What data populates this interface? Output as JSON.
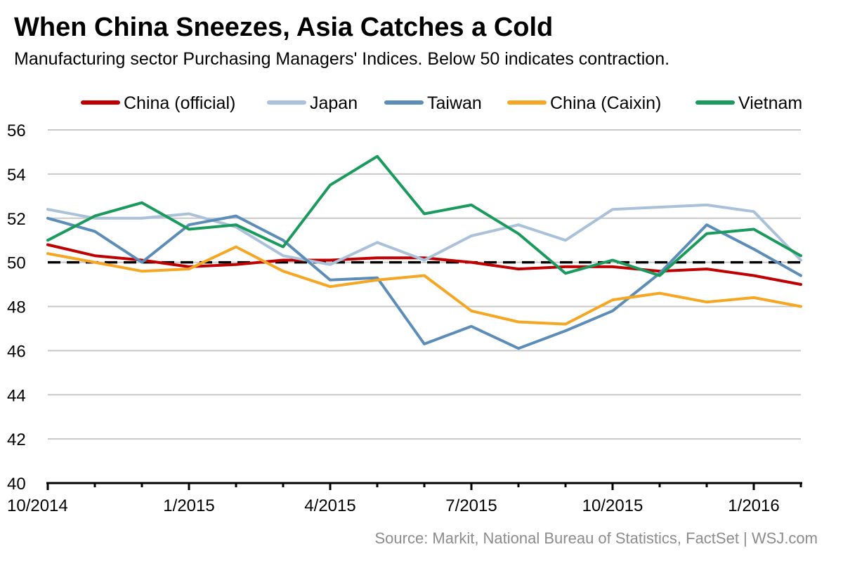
{
  "chart_data": {
    "type": "line",
    "title": "When China Sneezes, Asia Catches a Cold",
    "subtitle": "Manufacturing sector Purchasing Managers' Indices. Below 50 indicates contraction.",
    "source": "Source: Markit, National Bureau of Statistics, FactSet  |  WSJ.com",
    "xlabel": "",
    "ylabel": "",
    "ylim": [
      40,
      56
    ],
    "y_ticks": [
      "40",
      "42",
      "44",
      "46",
      "48",
      "50",
      "52",
      "54",
      "56"
    ],
    "y_tick_values": [
      40,
      42,
      44,
      46,
      48,
      50,
      52,
      54,
      56
    ],
    "x": [
      "10/2014",
      "11/2014",
      "12/2014",
      "1/2015",
      "2/2015",
      "3/2015",
      "4/2015",
      "5/2015",
      "6/2015",
      "7/2015",
      "8/2015",
      "9/2015",
      "10/2015",
      "11/2015",
      "12/2015",
      "1/2016",
      "2/2016"
    ],
    "x_tick_labels": [
      {
        "label": "10/2014",
        "index": 0
      },
      {
        "label": "1/2015",
        "index": 3
      },
      {
        "label": "4/2015",
        "index": 6
      },
      {
        "label": "7/2015",
        "index": 9
      },
      {
        "label": "10/2015",
        "index": 12
      },
      {
        "label": "1/2016",
        "index": 15
      }
    ],
    "reference_line": {
      "value": 50,
      "style": "dashed",
      "color": "#000000"
    },
    "grid": true,
    "legend_position": "top",
    "series": [
      {
        "name": "China (official)",
        "color": "#c00000",
        "values": [
          50.8,
          50.3,
          50.1,
          49.8,
          49.9,
          50.1,
          50.1,
          50.2,
          50.2,
          50.0,
          49.7,
          49.8,
          49.8,
          49.6,
          49.7,
          49.4,
          49.0
        ]
      },
      {
        "name": "Japan",
        "color": "#a9c1d9",
        "values": [
          52.4,
          52.0,
          52.0,
          52.2,
          51.6,
          50.3,
          49.9,
          50.9,
          50.1,
          51.2,
          51.7,
          51.0,
          52.4,
          52.5,
          52.6,
          52.3,
          50.1
        ]
      },
      {
        "name": "Taiwan",
        "color": "#5b8db8",
        "values": [
          52.0,
          51.4,
          50.0,
          51.7,
          52.1,
          51.0,
          49.2,
          49.3,
          46.3,
          47.1,
          46.1,
          46.9,
          47.8,
          49.5,
          51.7,
          50.6,
          49.4
        ]
      },
      {
        "name": "China (Caixin)",
        "color": "#f5a623",
        "values": [
          50.4,
          50.0,
          49.6,
          49.7,
          50.7,
          49.6,
          48.9,
          49.2,
          49.4,
          47.8,
          47.3,
          47.2,
          48.3,
          48.6,
          48.2,
          48.4,
          48.0
        ]
      },
      {
        "name": "Vietnam",
        "color": "#1a9a5c",
        "values": [
          51.0,
          52.1,
          52.7,
          51.5,
          51.7,
          50.7,
          53.5,
          54.8,
          52.2,
          52.6,
          51.3,
          49.5,
          50.1,
          49.4,
          51.3,
          51.5,
          50.3
        ]
      }
    ]
  }
}
